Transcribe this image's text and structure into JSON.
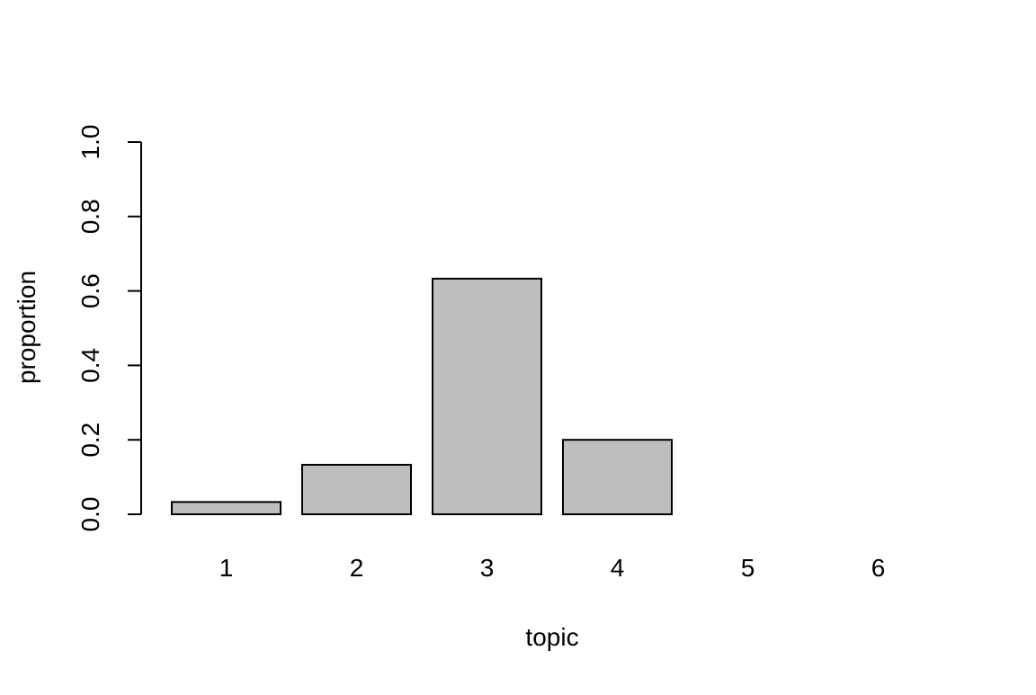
{
  "chart_data": {
    "type": "bar",
    "title": "",
    "xlabel": "topic",
    "ylabel": "proportion",
    "categories": [
      "1",
      "2",
      "3",
      "4",
      "5",
      "6"
    ],
    "values": [
      0.033,
      0.133,
      0.633,
      0.2,
      0.0,
      0.0
    ],
    "ylim": [
      0,
      1
    ],
    "yticks": [
      0,
      0.2,
      0.4,
      0.6,
      0.8,
      1
    ],
    "ytick_labels": [
      "0.0",
      "0.2",
      "0.4",
      "0.6",
      "0.8",
      "1.0"
    ],
    "grid": false,
    "legend": "none",
    "colors": {
      "bar_fill": "#bebebe",
      "bar_stroke": "#000000",
      "axis": "#000000",
      "background": "#ffffff"
    }
  }
}
